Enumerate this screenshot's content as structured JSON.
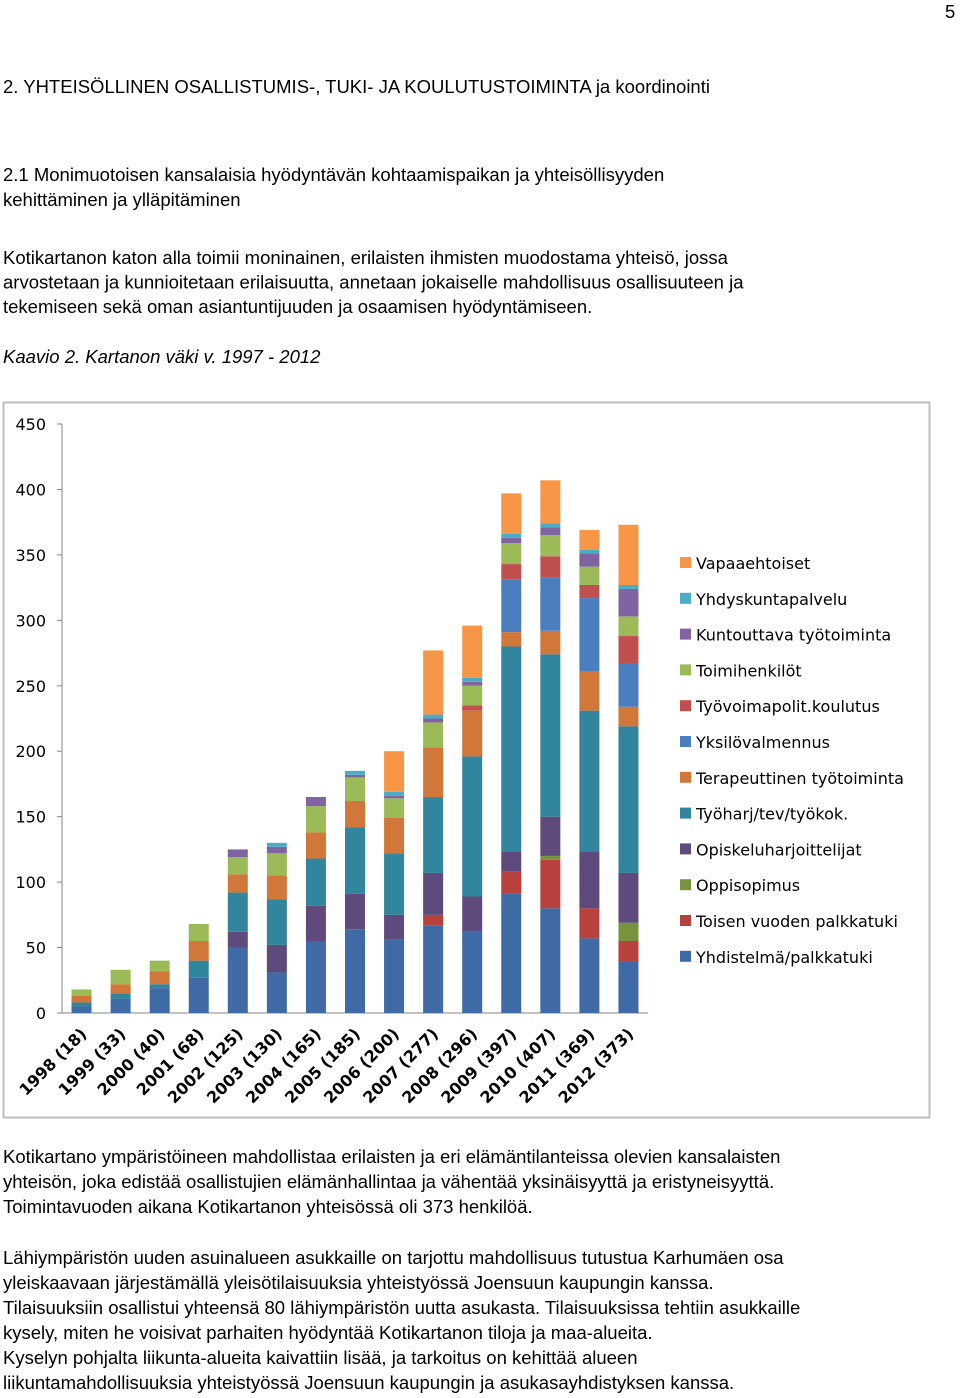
{
  "page_number": "5",
  "heading": "2. YHTEISÖLLINEN OSALLISTUMIS-, TUKI- JA KOULUTUSTOIMINTA ja koordinointi",
  "subheading": [
    "2.1 Monimuotoisen kansalaisia hyödyntävän kohtaamispaikan ja yhteisöllisyyden",
    "kehittäminen ja ylläpitäminen"
  ],
  "paragraph_1": [
    "Kotikartanon katon alla toimii moninainen, erilaisten ihmisten muodostama yhteisö, jossa",
    "arvostetaan ja kunnioitetaan erilaisuutta, annetaan jokaiselle mahdollisuus osallisuuteen ja",
    "tekemiseen sekä oman asiantuntijuuden ja osaamisen hyödyntämiseen."
  ],
  "caption": "Kaavio 2. Kartanon väki v. 1997 - 2012",
  "chart_data": {
    "type": "stacked_bar",
    "categories": [
      "1998 (18)",
      "1999 (33)",
      "2000 (40)",
      "2001 (68)",
      "2002 (125)",
      "2003 (130)",
      "2004 (165)",
      "2005 (185)",
      "2006 (200)",
      "2007 (277)",
      "2008 (296)",
      "2009 (397)",
      "2010 (407)",
      "2011 (369)",
      "2012 (373)"
    ],
    "ylim": [
      0,
      450
    ],
    "yticks": [
      0,
      50,
      100,
      150,
      200,
      250,
      300,
      350,
      400,
      450
    ],
    "grid": false,
    "series": [
      {
        "name": "Yhdistelmä/palkkatuki",
        "color": "#3f6aa6",
        "values": [
          5,
          11,
          19,
          27,
          50,
          31,
          55,
          64,
          56,
          67,
          62,
          91,
          80,
          57,
          39
        ]
      },
      {
        "name": "Toisen vuoden palkkatuki",
        "color": "#b8413e",
        "values": [
          0,
          0,
          0,
          0,
          0,
          0,
          0,
          0,
          0,
          8,
          0,
          17,
          37,
          23,
          16
        ]
      },
      {
        "name": "Oppisopimus",
        "color": "#77933c",
        "values": [
          0,
          0,
          0,
          0,
          0,
          0,
          0,
          0,
          0,
          0,
          0,
          0,
          3,
          0,
          14
        ]
      },
      {
        "name": "Opiskeluharjoittelijat",
        "color": "#5f4a7d",
        "values": [
          0,
          0,
          0,
          0,
          12,
          21,
          27,
          27,
          19,
          32,
          27,
          15,
          30,
          43,
          38
        ]
      },
      {
        "name": "Työharj/tev/työkok.",
        "color": "#31859c",
        "values": [
          3,
          4,
          3,
          13,
          30,
          35,
          36,
          51,
          47,
          58,
          107,
          157,
          124,
          108,
          112
        ]
      },
      {
        "name": "Terapeuttinen työtoiminta",
        "color": "#d2773a",
        "values": [
          5,
          7,
          10,
          15,
          14,
          18,
          20,
          20,
          27,
          38,
          35,
          11,
          18,
          30,
          15
        ]
      },
      {
        "name": "Yksilövalmennus",
        "color": "#4a7ebf",
        "values": [
          0,
          0,
          0,
          0,
          0,
          0,
          0,
          0,
          0,
          0,
          0,
          40,
          41,
          56,
          33
        ]
      },
      {
        "name": "Työvoimapolit.koulutus",
        "color": "#c0504d",
        "values": [
          0,
          0,
          0,
          0,
          0,
          0,
          0,
          0,
          0,
          0,
          4,
          12,
          16,
          10,
          21
        ]
      },
      {
        "name": "Toimihenkilöt",
        "color": "#9bbb59",
        "values": [
          5,
          11,
          8,
          13,
          13,
          17,
          20,
          18,
          15,
          19,
          15,
          16,
          16,
          14,
          15
        ]
      },
      {
        "name": "Kuntouttava työtoiminta",
        "color": "#8064a2",
        "values": [
          0,
          0,
          0,
          0,
          6,
          5,
          7,
          2,
          2,
          3,
          3,
          4,
          6,
          10,
          21
        ]
      },
      {
        "name": "Yhdyskuntapalvelu",
        "color": "#4bacc6",
        "values": [
          0,
          0,
          0,
          0,
          0,
          3,
          0,
          3,
          3,
          3,
          3,
          3,
          3,
          3,
          3
        ]
      },
      {
        "name": "Vapaaehtoiset",
        "color": "#f79646",
        "values": [
          0,
          0,
          0,
          0,
          0,
          0,
          0,
          0,
          31,
          49,
          40,
          31,
          33,
          15,
          46
        ]
      }
    ]
  },
  "paragraph_2": [
    "Kotikartano ympäristöineen mahdollistaa erilaisten ja eri elämäntilanteissa olevien kansalaisten",
    "yhteisön, joka edistää osallistujien elämänhallintaa ja vähentää yksinäisyyttä ja eristyneisyyttä.",
    "Toimintavuoden aikana Kotikartanon yhteisössä oli 373 henkilöä."
  ],
  "paragraph_3": [
    "Lähiympäristön uuden asuinalueen asukkaille on tarjottu mahdollisuus tutustua Karhumäen osa",
    "yleiskaavaan  järjestämällä yleisötilaisuuksia yhteistyössä Joensuun kaupungin kanssa.",
    "Tilaisuuksiin osallistui yhteensä 80 lähiympäristön uutta asukasta. Tilaisuuksissa tehtiin asukkaille",
    "kysely, miten he voisivat parhaiten hyödyntää Kotikartanon tiloja ja maa-alueita.",
    "Kyselyn pohjalta liikunta-alueita kaivattiin lisää, ja tarkoitus on kehittää alueen",
    "liikuntamahdollisuuksia yhteistyössä Joensuun kaupungin ja asukasayhdistyksen kanssa."
  ]
}
